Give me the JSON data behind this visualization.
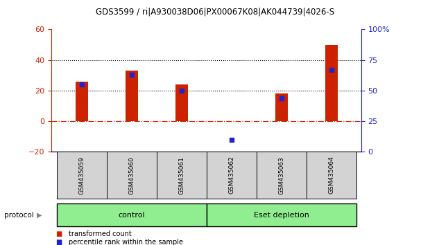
{
  "title": "GDS3599 / ri|A930038D06|PX00067K08|AK044739|4026-S",
  "samples": [
    "GSM435059",
    "GSM435060",
    "GSM435061",
    "GSM435062",
    "GSM435063",
    "GSM435064"
  ],
  "transformed_count": [
    26,
    33,
    24,
    0.3,
    18,
    50
  ],
  "percentile_rank": [
    55,
    63,
    50,
    10,
    44,
    67
  ],
  "left_ylim": [
    -20,
    60
  ],
  "right_ylim": [
    0,
    100
  ],
  "left_yticks": [
    -20,
    0,
    20,
    40,
    60
  ],
  "right_yticks": [
    0,
    25,
    50,
    75,
    100
  ],
  "right_yticklabels": [
    "0",
    "25",
    "50",
    "75",
    "100%"
  ],
  "bar_color": "#cc2200",
  "dot_color": "#2222cc",
  "hline_color": "#cc2200",
  "dotted_line_color": "#000000",
  "control_label": "control",
  "depletion_label": "Eset depletion",
  "group_color": "#90ee90",
  "protocol_label": "protocol",
  "legend_bar_label": "transformed count",
  "legend_dot_label": "percentile rank within the sample",
  "bar_width": 0.25,
  "tick_area_color": "#d3d3d3",
  "n_control": 3,
  "n_depletion": 3
}
